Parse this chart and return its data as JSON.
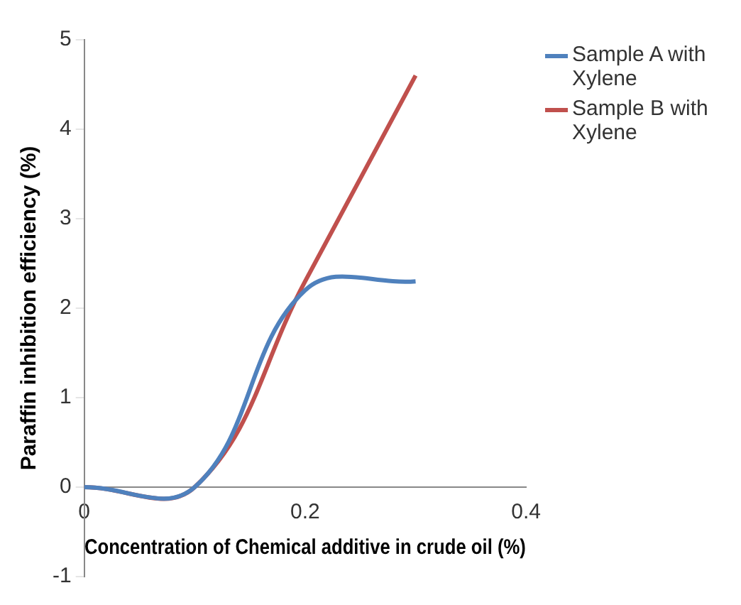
{
  "chart_data": {
    "type": "line",
    "xlabel": "Concentration of Chemical additive in crude oil (%)",
    "ylabel": "Paraffin inhibition efficiency (%)",
    "x": [
      0,
      0.1,
      0.2,
      0.3
    ],
    "series": [
      {
        "name": "Sample A with Xylene",
        "color": "#4f81bd",
        "values": [
          0,
          0,
          2.2,
          2.3
        ]
      },
      {
        "name": "Sample B with Xylene",
        "color": "#c0504d",
        "values": [
          0,
          0,
          2.3,
          4.6
        ]
      }
    ],
    "xlim": [
      0,
      0.4
    ],
    "xticks": [
      0,
      0.2,
      0.4
    ],
    "ylim": [
      -1,
      5
    ],
    "yticks": [
      -1,
      0,
      1,
      2,
      3,
      4,
      5
    ],
    "grid": false,
    "legend": "right",
    "marker": "none"
  }
}
